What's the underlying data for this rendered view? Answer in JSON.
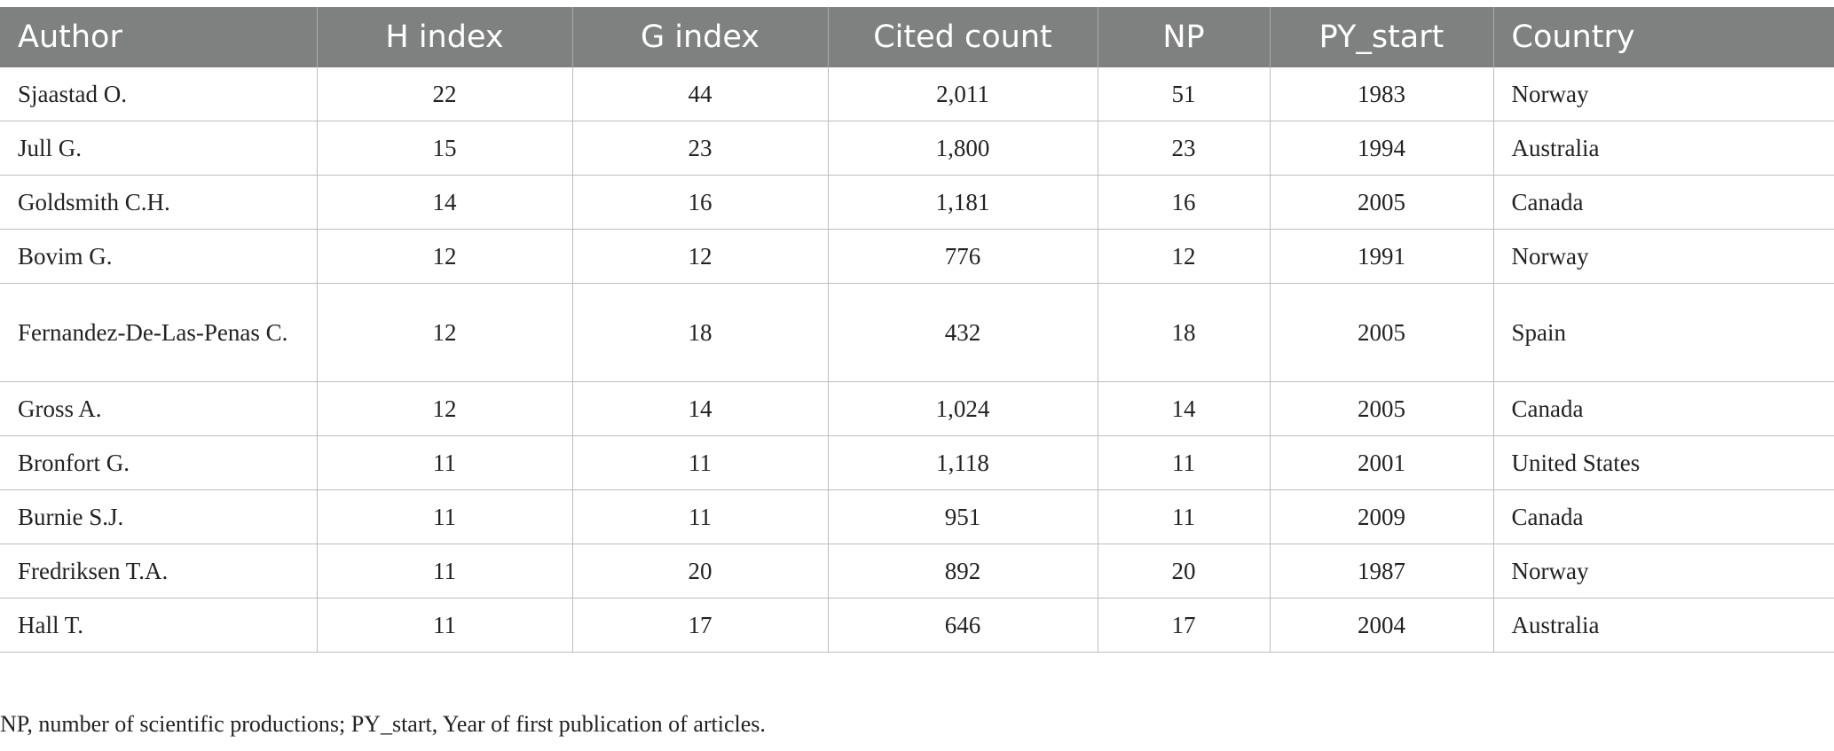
{
  "table": {
    "headers": [
      "Author",
      "H index",
      "G index",
      "Cited count",
      "NP",
      "PY_start",
      "Country"
    ],
    "rows": [
      [
        "Sjaastad O.",
        "22",
        "44",
        "2,011",
        "51",
        "1983",
        "Norway"
      ],
      [
        "Jull G.",
        "15",
        "23",
        "1,800",
        "23",
        "1994",
        "Australia"
      ],
      [
        "Goldsmith C.H.",
        "14",
        "16",
        "1,181",
        "16",
        "2005",
        "Canada"
      ],
      [
        "Bovim G.",
        "12",
        "12",
        "776",
        "12",
        "1991",
        "Norway"
      ],
      [
        "Fernandez-De-Las-Penas C.",
        "12",
        "18",
        "432",
        "18",
        "2005",
        "Spain"
      ],
      [
        "Gross A.",
        "12",
        "14",
        "1,024",
        "14",
        "2005",
        "Canada"
      ],
      [
        "Bronfort G.",
        "11",
        "11",
        "1,118",
        "11",
        "2001",
        "United States"
      ],
      [
        "Burnie S.J.",
        "11",
        "11",
        "951",
        "11",
        "2009",
        "Canada"
      ],
      [
        "Fredriksen T.A.",
        "11",
        "20",
        "892",
        "20",
        "1987",
        "Norway"
      ],
      [
        "Hall T.",
        "11",
        "17",
        "646",
        "17",
        "2004",
        "Australia"
      ]
    ]
  },
  "footnote": "NP, number of scientific productions; PY_start, Year of first publication of articles."
}
